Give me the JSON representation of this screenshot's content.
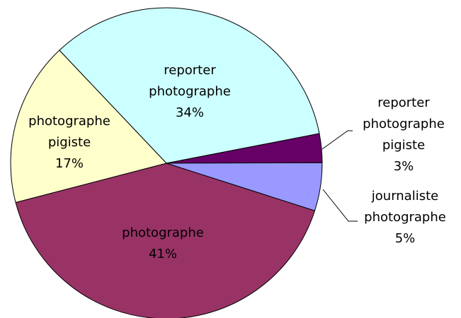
{
  "chart_data": {
    "type": "pie",
    "categories": [
      "reporter photographe",
      "reporter photographe pigiste",
      "journaliste photographe",
      "photographe",
      "photographe pigiste"
    ],
    "values": [
      34,
      3,
      5,
      41,
      17
    ],
    "value_labels": [
      "34%",
      "3%",
      "5%",
      "41%",
      "17%"
    ],
    "colors": [
      "#ccffff",
      "#660066",
      "#9999ff",
      "#993366",
      "#ffffcc"
    ]
  }
}
